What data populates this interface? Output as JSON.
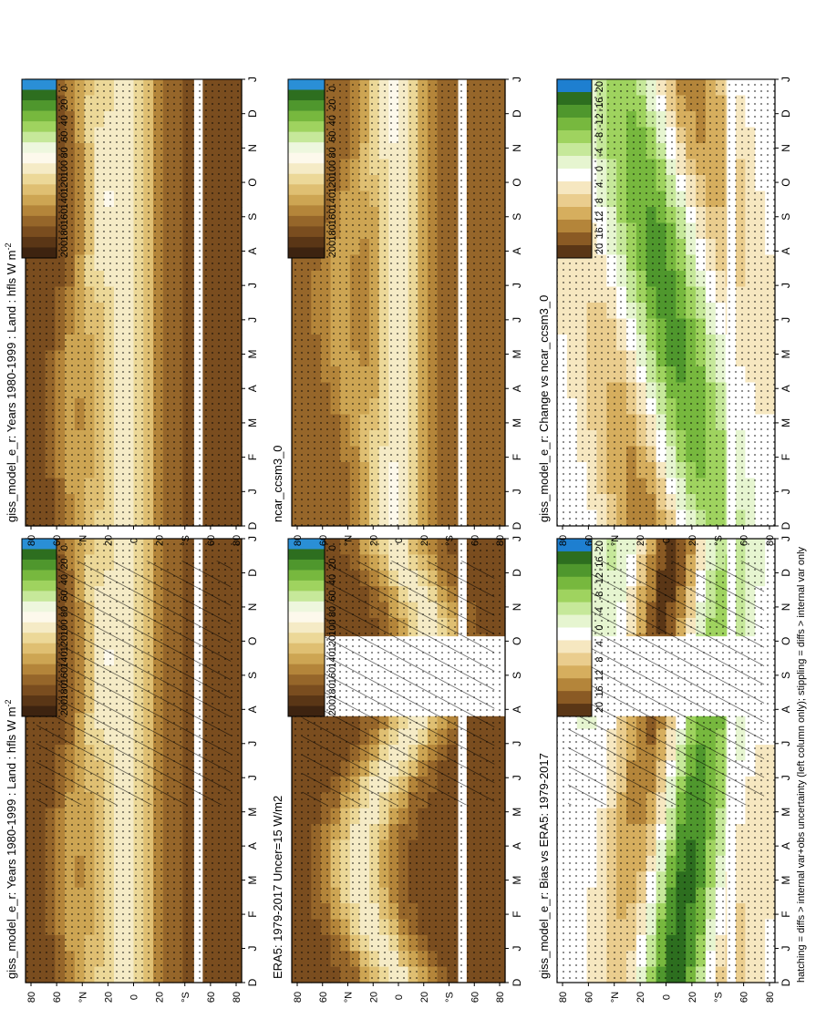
{
  "footnote": "hatching = diffs > internal var+obs uncertainty (left column only); stippling = diffs > internal var only",
  "lat_ticks": [
    "80",
    "60",
    "°N",
    "20",
    "0",
    "20",
    "°S",
    "60",
    "80"
  ],
  "month_ticks": [
    "D",
    "J",
    "F",
    "M",
    "A",
    "M",
    "J",
    "J",
    "A",
    "S",
    "O",
    "N",
    "D",
    "J"
  ],
  "colors": {
    "abs_scale": [
      "#3d2310",
      "#5a3616",
      "#7a4d1f",
      "#96662a",
      "#b4853a",
      "#cda553",
      "#dfbf72",
      "#ecd898",
      "#f5ebc6",
      "#fdf9ec",
      "#eef7de",
      "#c6e89a",
      "#9fd35f",
      "#77b83e",
      "#4f972d",
      "#2d6e1f",
      "#2a8fd6"
    ],
    "diff_scale": [
      "#5a3616",
      "#8a5a24",
      "#b4853a",
      "#d6ae5e",
      "#eacd8e",
      "#f6e7c0",
      "#ffffff",
      "#e6f5d0",
      "#c6e89a",
      "#9fd35f",
      "#77b83e",
      "#4f972d",
      "#2d6e1f",
      "#1e7fd0"
    ],
    "missing": "#ffffff"
  },
  "chart_data": [
    {
      "type": "heatmap",
      "title": "giss_model_e_r: Years 1980-1999 : Land : hfls W m",
      "title_sup": "-2",
      "x": "month",
      "y": "latitude",
      "colorbar_ticks": [
        "200",
        "180",
        "160",
        "140",
        "120",
        "100",
        "80",
        "60",
        "40",
        "20",
        "0"
      ],
      "hatching": true,
      "stippling": true
    },
    {
      "type": "heatmap",
      "title": "ERA5: 1979-2017 Uncer=15 W/m2",
      "x": "month",
      "y": "latitude",
      "colorbar_ticks": [
        "200",
        "180",
        "160",
        "140",
        "120",
        "100",
        "80",
        "60",
        "40",
        "20",
        "0"
      ],
      "hatching": true,
      "stippling": true
    },
    {
      "type": "heatmap",
      "title": "giss_model_e_r: Bias vs ERA5: 1979-2017",
      "x": "month",
      "y": "latitude",
      "colorbar_ticks": [
        "20",
        "16",
        "12",
        "8",
        "4",
        "0",
        "-4",
        "-8",
        "-12",
        "-16",
        "-20"
      ],
      "hatching": true,
      "stippling": true
    },
    {
      "type": "heatmap",
      "title": "giss_model_e_r: Years 1980-1999 : Land : hfls W m",
      "title_sup": "-2",
      "x": "month",
      "y": "latitude",
      "colorbar_ticks": [
        "200",
        "180",
        "160",
        "140",
        "120",
        "100",
        "80",
        "60",
        "40",
        "20",
        "0"
      ],
      "hatching": false,
      "stippling": true
    },
    {
      "type": "heatmap",
      "title": "ncar_ccsm3_0",
      "x": "month",
      "y": "latitude",
      "colorbar_ticks": [
        "200",
        "180",
        "160",
        "140",
        "120",
        "100",
        "80",
        "60",
        "40",
        "20",
        "0"
      ],
      "hatching": false,
      "stippling": true
    },
    {
      "type": "heatmap",
      "title": "giss_model_e_r: Change vs ncar_ccsm3_0",
      "x": "month",
      "y": "latitude",
      "colorbar_ticks": [
        "20",
        "16",
        "12",
        "8",
        "4",
        "0",
        "-4",
        "-8",
        "-12",
        "-16",
        "-20"
      ],
      "hatching": false,
      "stippling": true
    }
  ]
}
